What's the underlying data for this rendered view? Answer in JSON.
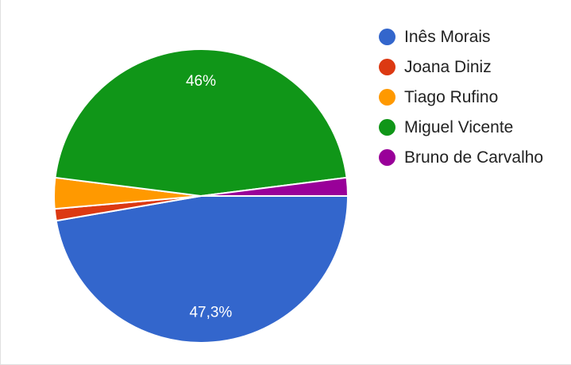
{
  "chart_data": {
    "type": "pie",
    "title": "",
    "legend_position": "right",
    "slices": [
      {
        "name": "Inês Morais",
        "value": 47.3,
        "color": "#3366cc",
        "label": "47,3%"
      },
      {
        "name": "Joana Diniz",
        "value": 1.3,
        "color": "#dc3912",
        "label": ""
      },
      {
        "name": "Tiago Rufino",
        "value": 3.4,
        "color": "#ff9900",
        "label": ""
      },
      {
        "name": "Miguel Vicente",
        "value": 46.0,
        "color": "#109618",
        "label": "46%"
      },
      {
        "name": "Bruno de Carvalho",
        "value": 2.0,
        "color": "#990099",
        "label": ""
      }
    ]
  }
}
